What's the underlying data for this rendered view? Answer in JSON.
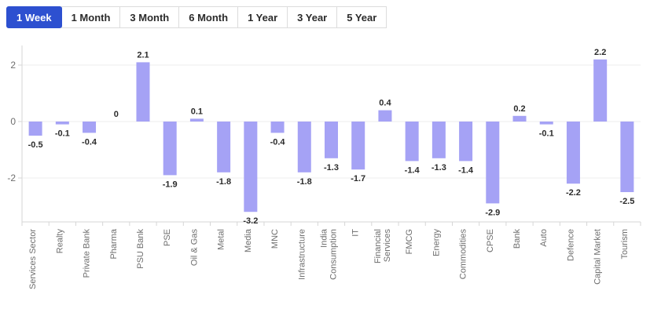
{
  "tabs": {
    "items": [
      {
        "label": "1 Week",
        "active": true
      },
      {
        "label": "1 Month",
        "active": false
      },
      {
        "label": "3 Month",
        "active": false
      },
      {
        "label": "6 Month",
        "active": false
      },
      {
        "label": "1 Year",
        "active": false
      },
      {
        "label": "3 Year",
        "active": false
      },
      {
        "label": "5 Year",
        "active": false
      }
    ]
  },
  "colors": {
    "bar": "#a5a2f5",
    "active_tab_bg": "#2d50d0",
    "active_tab_text": "#ffffff",
    "tab_text": "#2b2b2b",
    "tab_border": "#dcdcdc",
    "gridline": "#ececec",
    "axis_line": "#d6d6d6",
    "axis_text": "#6e6e6e",
    "value_label": "#2b2b2b"
  },
  "chart_data": {
    "type": "bar",
    "title": "",
    "xlabel": "",
    "ylabel": "",
    "categories": [
      "Services Sector",
      "Realty",
      "Private Bank",
      "Pharma",
      "PSU Bank",
      "PSE",
      "Oil & Gas",
      "Metal",
      "Media",
      "MNC",
      "Infrastructure",
      "India Consumption",
      "IT",
      "Financial Services",
      "FMCG",
      "Energy",
      "Commodities",
      "CPSE",
      "Bank",
      "Auto",
      "Defence",
      "Capital Market",
      "Tourism"
    ],
    "values": [
      -0.5,
      -0.1,
      -0.4,
      0,
      2.1,
      -1.9,
      0.1,
      -1.8,
      -3.2,
      -0.4,
      -1.8,
      -1.3,
      -1.7,
      0.4,
      -1.4,
      -1.3,
      -1.4,
      -2.9,
      0.2,
      -0.1,
      -2.2,
      2.2,
      -2.5
    ],
    "wrapped_categories": [
      "India Consumption",
      "Financial Services"
    ],
    "yticks": [
      2,
      0,
      -2
    ],
    "ylim": [
      -3.6,
      2.75
    ],
    "grid": true,
    "legend": "none",
    "x_labels_rotated": true
  }
}
